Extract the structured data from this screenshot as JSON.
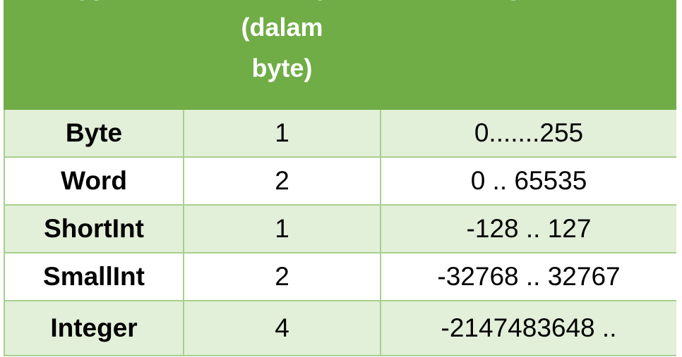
{
  "header": {
    "col1": [
      "Type"
    ],
    "col2": [
      "Memory",
      "(dalam",
      "byte)"
    ],
    "col3": [
      "Jangkauan"
    ]
  },
  "rows": [
    {
      "type": "Byte",
      "size": "1",
      "range": "0.......255"
    },
    {
      "type": "Word",
      "size": "2",
      "range": "0 .. 65535"
    },
    {
      "type": "ShortInt",
      "size": "1",
      "range": "-128 .. 127"
    },
    {
      "type": "SmallInt",
      "size": "2",
      "range": "-32768 .. 32767"
    },
    {
      "type": "Integer",
      "size": "4",
      "range": "-2147483648 .."
    }
  ],
  "colors": {
    "header": "#70ad47",
    "band": "#e2efd9",
    "border": "#a8d08d"
  }
}
